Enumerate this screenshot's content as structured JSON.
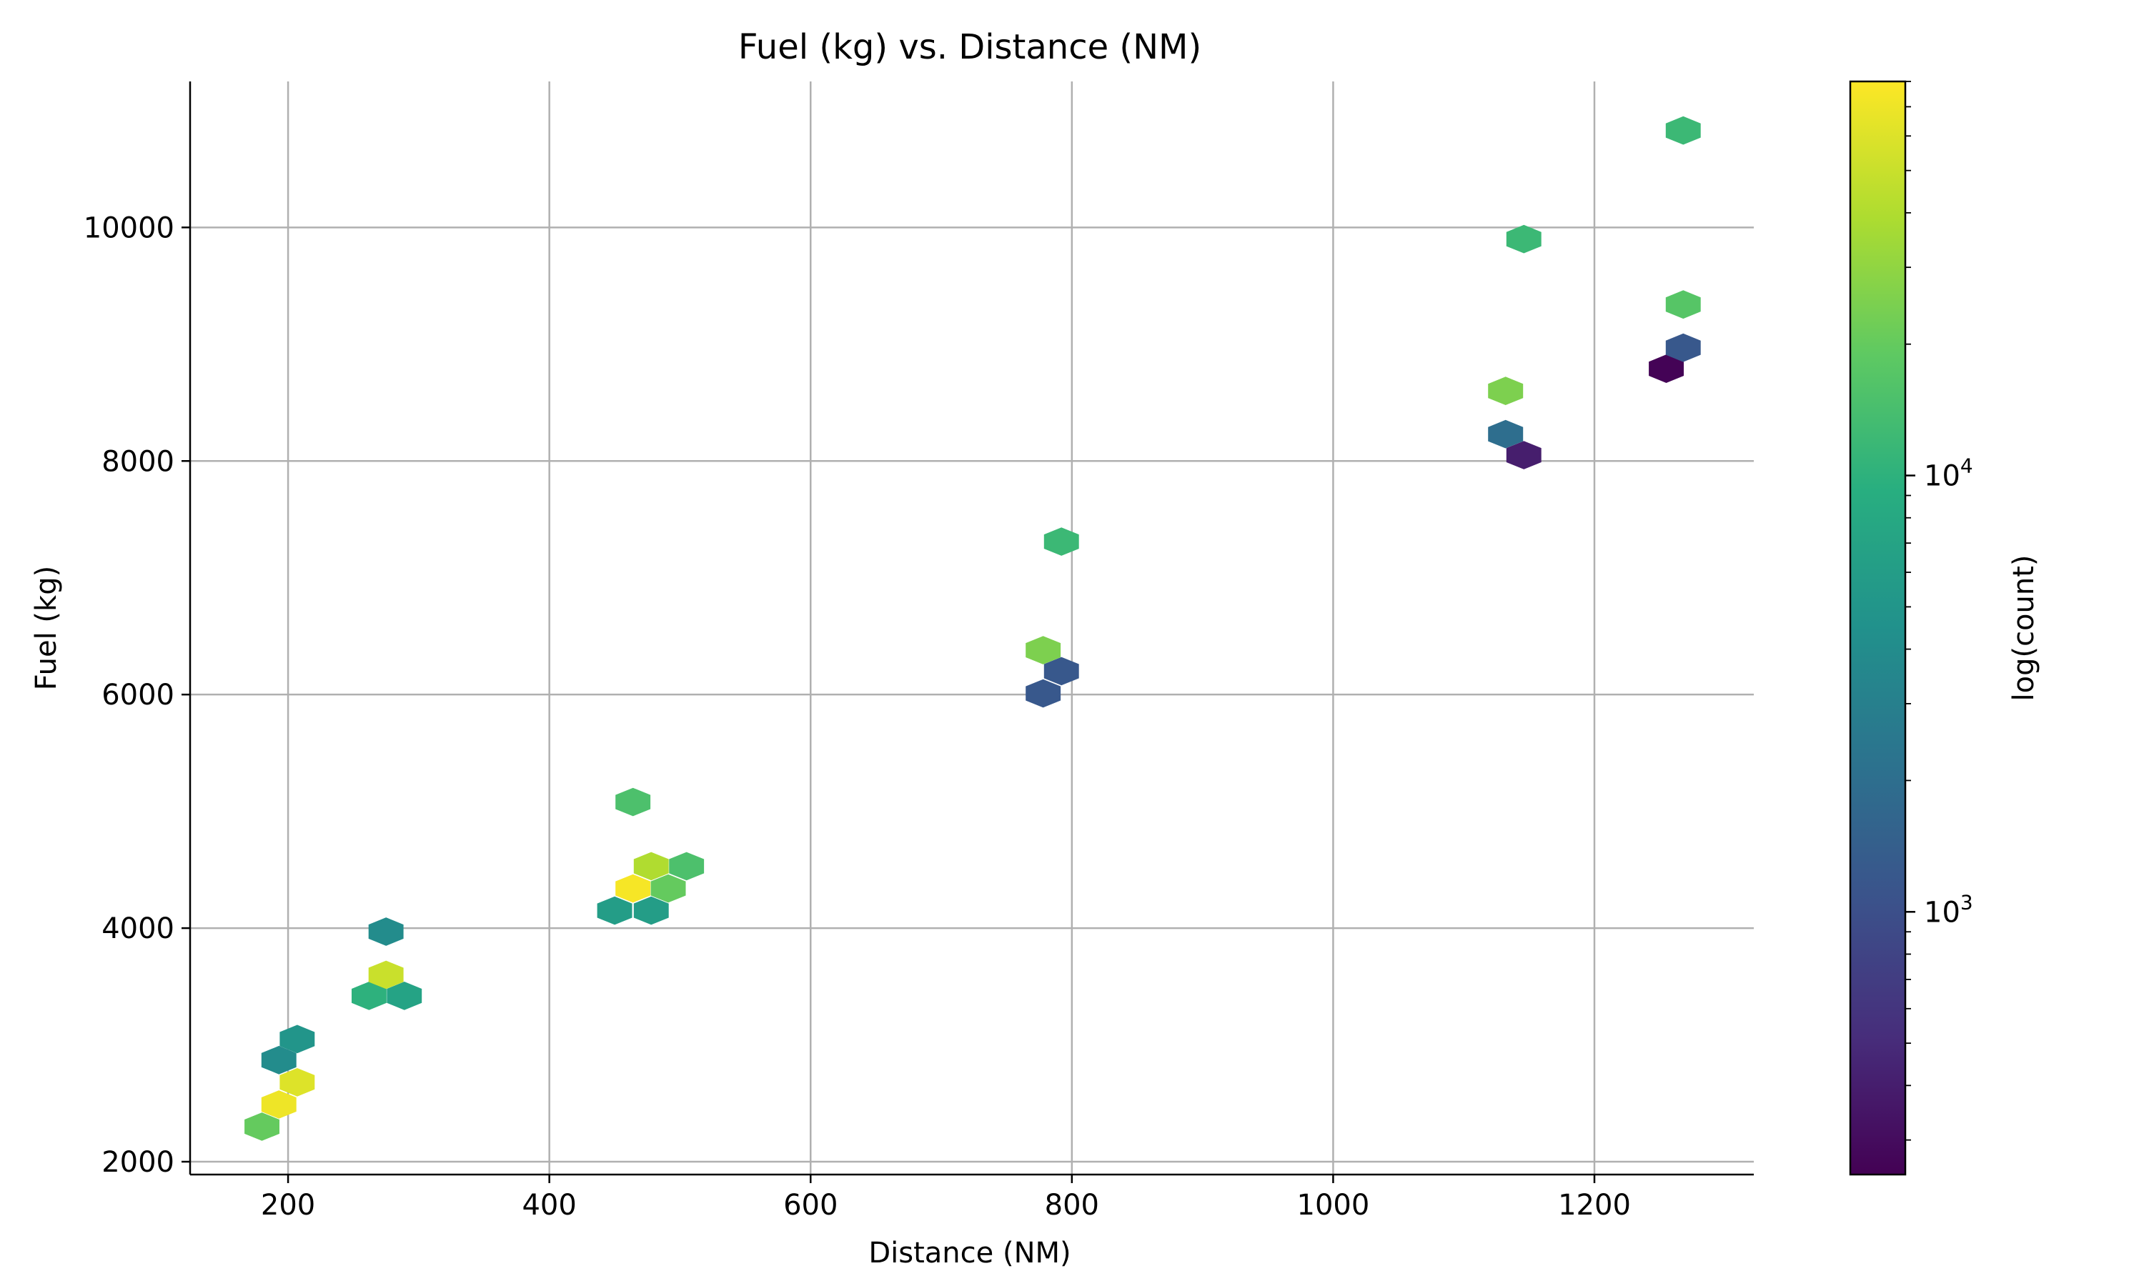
{
  "chart_data": {
    "type": "hexbin",
    "title": "Fuel (kg) vs. Distance (NM)",
    "xlabel": "Distance (NM)",
    "ylabel": "Fuel (kg)",
    "xlim": [
      125,
      1322
    ],
    "ylim": [
      1890,
      11250
    ],
    "xticks": [
      200,
      400,
      600,
      800,
      1000,
      1200
    ],
    "yticks": [
      2000,
      4000,
      6000,
      8000,
      10000
    ],
    "grid": true,
    "colormap": "viridis",
    "colorbar": {
      "label": "log(count)",
      "scale": "log",
      "range": [
        250,
        80000
      ],
      "ticks": [
        {
          "value": 1000,
          "base": "10",
          "exp": "3"
        },
        {
          "value": 10000,
          "base": "10",
          "exp": "4"
        }
      ]
    },
    "points": [
      {
        "x": 180,
        "y": 2300,
        "count": 20000
      },
      {
        "x": 193,
        "y": 2490,
        "count": 70000
      },
      {
        "x": 207,
        "y": 2680,
        "count": 60000
      },
      {
        "x": 193,
        "y": 2870,
        "count": 4000
      },
      {
        "x": 207,
        "y": 3050,
        "count": 5000
      },
      {
        "x": 262,
        "y": 3420,
        "count": 10000
      },
      {
        "x": 289,
        "y": 3420,
        "count": 7000
      },
      {
        "x": 275,
        "y": 3600,
        "count": 50000
      },
      {
        "x": 275,
        "y": 3970,
        "count": 4000
      },
      {
        "x": 450,
        "y": 4150,
        "count": 6000
      },
      {
        "x": 478,
        "y": 4150,
        "count": 6000
      },
      {
        "x": 464,
        "y": 4340,
        "count": 75000
      },
      {
        "x": 491,
        "y": 4340,
        "count": 20000
      },
      {
        "x": 478,
        "y": 4530,
        "count": 40000
      },
      {
        "x": 505,
        "y": 4530,
        "count": 15000
      },
      {
        "x": 464,
        "y": 5080,
        "count": 15000
      },
      {
        "x": 778,
        "y": 6010,
        "count": 1200
      },
      {
        "x": 792,
        "y": 6200,
        "count": 1200
      },
      {
        "x": 778,
        "y": 6380,
        "count": 25000
      },
      {
        "x": 792,
        "y": 7310,
        "count": 12000
      },
      {
        "x": 1132,
        "y": 8230,
        "count": 2000
      },
      {
        "x": 1146,
        "y": 8050,
        "count": 400
      },
      {
        "x": 1132,
        "y": 8600,
        "count": 25000
      },
      {
        "x": 1146,
        "y": 9900,
        "count": 12000
      },
      {
        "x": 1255,
        "y": 8790,
        "count": 260
      },
      {
        "x": 1268,
        "y": 8970,
        "count": 1200
      },
      {
        "x": 1268,
        "y": 9340,
        "count": 17000
      },
      {
        "x": 1268,
        "y": 10830,
        "count": 12000
      }
    ]
  }
}
